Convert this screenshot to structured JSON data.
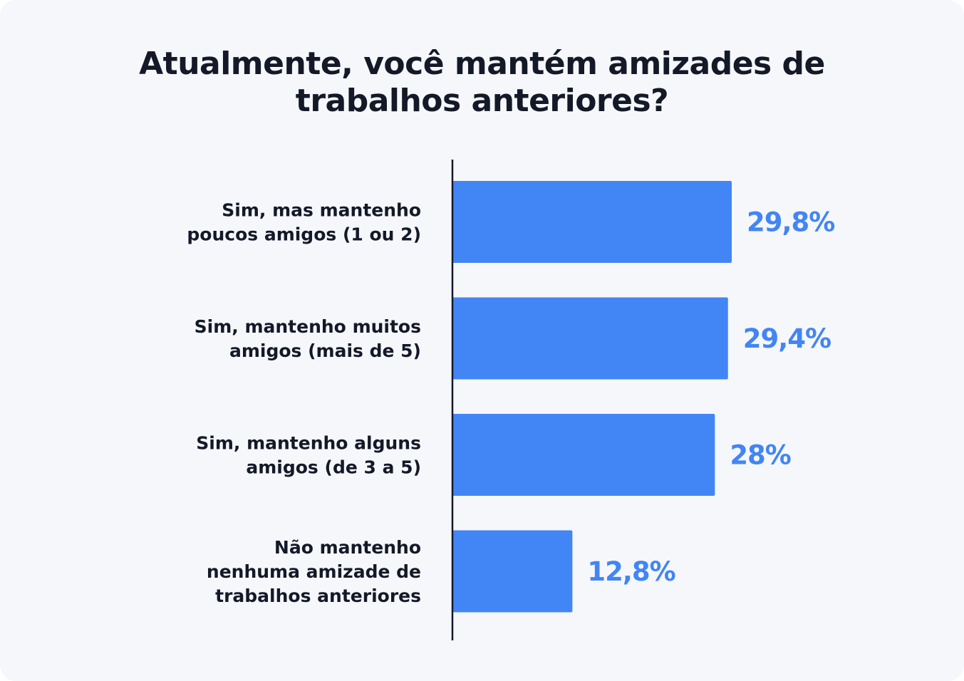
{
  "chart_data": {
    "type": "bar",
    "orientation": "horizontal",
    "title": "Atualmente, você mantém amizades de\ntrabalhos anteriores?",
    "categories": [
      [
        "Sim, mas mantenho",
        "poucos amigos (1 ou 2)"
      ],
      [
        "Sim, mantenho muitos",
        "amigos (mais de 5)"
      ],
      [
        "Sim, mantenho alguns",
        "amigos (de 3 a 5)"
      ],
      [
        "Não mantenho",
        "nenhuma amizade de",
        "trabalhos anteriores"
      ]
    ],
    "values": [
      29.8,
      29.4,
      28,
      12.8
    ],
    "value_labels": [
      "29,8%",
      "29,4%",
      "28%",
      "12,8%"
    ],
    "xlim": [
      0,
      29.8
    ],
    "grid": false,
    "legend": "none",
    "bar_color": "#4285f4",
    "value_label_color": "#4285f4",
    "axis_color": "#141928"
  }
}
